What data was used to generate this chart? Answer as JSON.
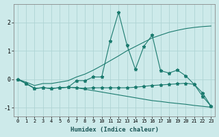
{
  "xlabel": "Humidex (Indice chaleur)",
  "x": [
    0,
    1,
    2,
    3,
    4,
    5,
    6,
    7,
    8,
    9,
    10,
    11,
    12,
    13,
    14,
    15,
    16,
    17,
    18,
    19,
    20,
    21,
    22,
    23
  ],
  "line1_marked": [
    0.0,
    -0.15,
    -0.32,
    -0.3,
    -0.32,
    -0.3,
    -0.28,
    -0.05,
    -0.05,
    0.08,
    0.08,
    1.35,
    2.35,
    1.2,
    0.35,
    1.15,
    1.55,
    0.3,
    0.22,
    0.32,
    0.12,
    -0.18,
    -0.48,
    -0.95
  ],
  "line2_smooth_up": [
    0.0,
    -0.1,
    -0.22,
    -0.15,
    -0.15,
    -0.1,
    -0.05,
    0.08,
    0.18,
    0.32,
    0.48,
    0.65,
    0.82,
    1.0,
    1.15,
    1.3,
    1.45,
    1.55,
    1.65,
    1.72,
    1.78,
    1.82,
    1.85,
    1.87
  ],
  "line3_flat_marked": [
    0.0,
    -0.15,
    -0.32,
    -0.3,
    -0.32,
    -0.3,
    -0.28,
    -0.3,
    -0.32,
    -0.3,
    -0.3,
    -0.3,
    -0.3,
    -0.3,
    -0.28,
    -0.25,
    -0.22,
    -0.2,
    -0.18,
    -0.16,
    -0.14,
    -0.18,
    -0.6,
    -0.95
  ],
  "line4_down": [
    0.0,
    -0.15,
    -0.32,
    -0.3,
    -0.32,
    -0.3,
    -0.28,
    -0.3,
    -0.35,
    -0.4,
    -0.45,
    -0.5,
    -0.55,
    -0.6,
    -0.65,
    -0.7,
    -0.75,
    -0.78,
    -0.82,
    -0.85,
    -0.88,
    -0.92,
    -0.95,
    -0.98
  ],
  "bg_color": "#cdeaea",
  "grid_color": "#afd4d4",
  "line_color": "#1a7a6e",
  "ylim": [
    -1.3,
    2.65
  ],
  "yticks": [
    -1,
    0,
    1,
    2
  ],
  "figsize": [
    3.2,
    2.0
  ],
  "dpi": 100
}
